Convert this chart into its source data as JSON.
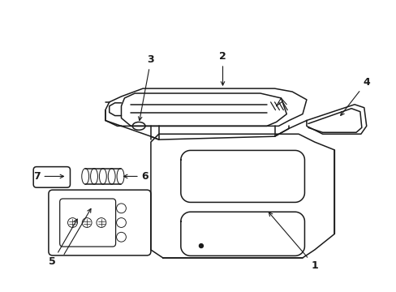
{
  "bg_color": "#ffffff",
  "line_color": "#1a1a1a",
  "lw": 1.1,
  "label_fs": 9,
  "label_fw": "bold"
}
